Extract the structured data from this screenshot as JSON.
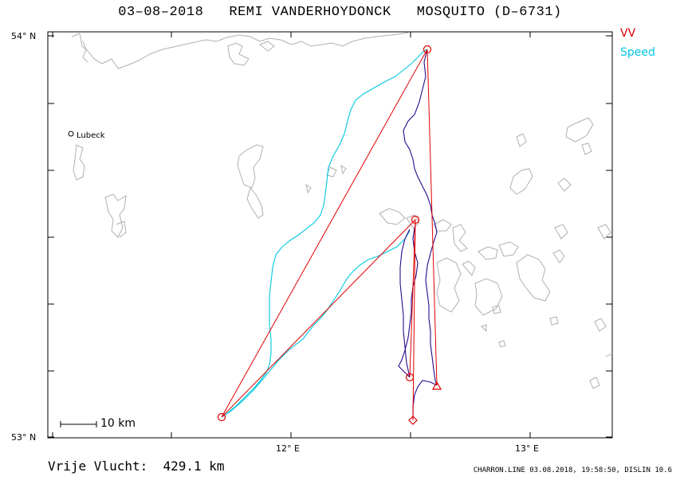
{
  "title": "03–08–2018   REMI VANDERHOYDONCK   MOSQUITO (D–6731)",
  "legend": [
    {
      "label": "VV",
      "color": "#e00000"
    },
    {
      "label": "Speed",
      "color": "#00c8e0"
    }
  ],
  "axes": {
    "lat_labels": [
      "54° N",
      "53° N"
    ],
    "lon_labels": [
      "12° E",
      "13° E"
    ]
  },
  "city": "Lubeck",
  "scale_label": "10 km",
  "distance": "Vrije Vlucht:  429.1 km",
  "footer": "CHARRON.LINE 03.08.2018, 19:58:50, DISLIN 10.6",
  "colors": {
    "route": "#e00000",
    "track_speed": "#00c8e0",
    "track_vv": "#2a0a8c",
    "coast": "#b0b0b0"
  }
}
